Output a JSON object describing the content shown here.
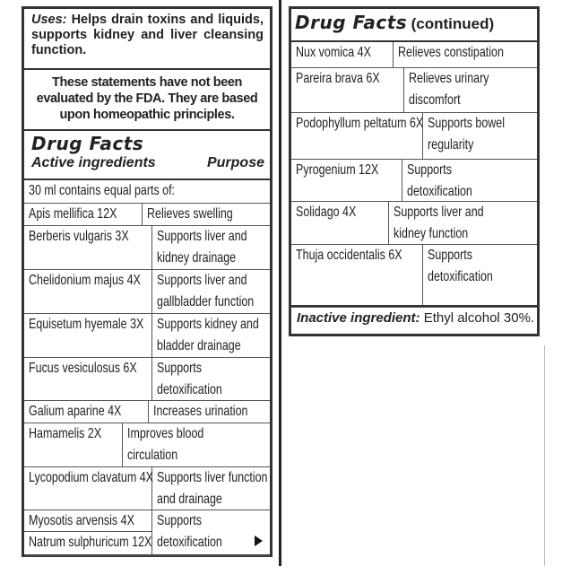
{
  "uses": {
    "label": "Uses:",
    "text": " Helps drain toxins and liquids, supports kidney and liver cleansing function."
  },
  "fda_statement": "These statements have not been evaluated by the FDA. They are based upon homeopathic principles.",
  "drug_facts": {
    "title": "Drug Facts",
    "col_ingredients": "Active ingredients",
    "col_purpose": "Purpose",
    "intro": "30 ml contains equal parts of:",
    "rows": [
      {
        "ingredient": "Apis mellifica 12X",
        "purpose": "Relieves swelling"
      },
      {
        "ingredient": "Berberis vulgaris 3X",
        "purpose": "Supports liver and kidney drainage"
      },
      {
        "ingredient": "Chelidonium majus 4X",
        "purpose": "Supports liver and gallbladder function"
      },
      {
        "ingredient": "Equisetum hyemale 3X",
        "purpose": "Supports kidney and bladder drainage"
      },
      {
        "ingredient": "Fucus vesiculosus 6X",
        "purpose": "Supports detoxification"
      },
      {
        "ingredient": "Galium aparine 4X",
        "purpose": "Increases urination"
      },
      {
        "ingredient": "Hamamelis 2X",
        "purpose": "Improves blood circulation"
      },
      {
        "ingredient": "Lycopodium clavatum 4X",
        "purpose": "Supports liver function and drainage"
      },
      {
        "ingredient": "Myosotis arvensis 4X",
        "purpose": ""
      },
      {
        "ingredient": "Natrum sulphuricum 12X",
        "purpose": "Supports detoxification"
      }
    ]
  },
  "continued": {
    "title": "Drug Facts",
    "suffix": "(continued)",
    "rows": [
      {
        "ingredient": "Nux vomica 4X",
        "purpose": "Relieves constipation"
      },
      {
        "ingredient": "Pareira brava 6X",
        "purpose": "Relieves urinary discomfort"
      },
      {
        "ingredient": "Podophyllum peltatum 6X",
        "purpose": "Supports bowel regularity"
      },
      {
        "ingredient": "Pyrogenium 12X",
        "purpose": "Supports detoxification"
      },
      {
        "ingredient": "Solidago 4X",
        "purpose": "Supports liver and kidney function"
      },
      {
        "ingredient": "Thuja occidentalis 6X",
        "purpose": "Supports detoxification"
      }
    ],
    "inactive_label": "Inactive ingredient:",
    "inactive_value": " Ethyl alcohol 30%."
  },
  "icons": {
    "continue_arrow": "triangle-right-icon"
  }
}
